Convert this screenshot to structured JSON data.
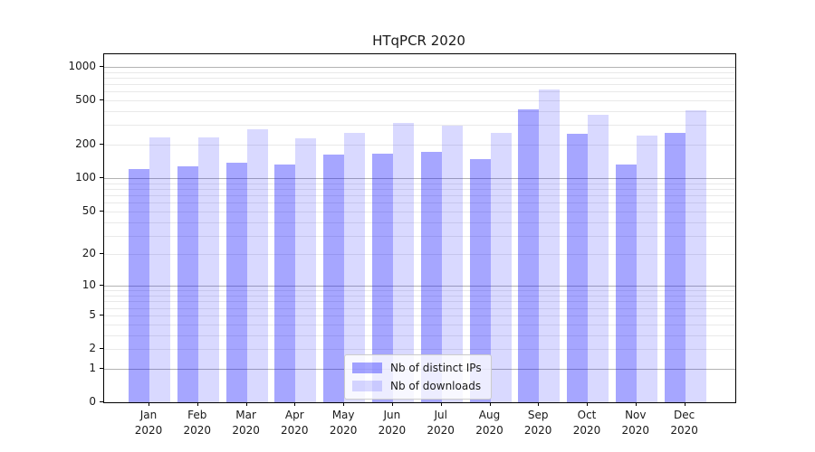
{
  "chart_data": {
    "type": "bar",
    "title": "HTqPCR 2020",
    "categories": [
      "Jan 2020",
      "Feb 2020",
      "Mar 2020",
      "Apr 2020",
      "May 2020",
      "Jun 2020",
      "Jul 2020",
      "Aug 2020",
      "Sep 2020",
      "Oct 2020",
      "Nov 2020",
      "Dec 2020"
    ],
    "series": [
      {
        "name": "Nb of distinct IPs",
        "values": [
          122,
          128,
          139,
          133,
          164,
          165,
          174,
          149,
          415,
          253,
          132,
          254
        ]
      },
      {
        "name": "Nb of downloads",
        "values": [
          235,
          235,
          276,
          230,
          257,
          312,
          299,
          258,
          622,
          375,
          244,
          405
        ]
      }
    ],
    "xlabel": "",
    "ylabel": "",
    "yscale": "log1p",
    "ylim": [
      0,
      1300
    ],
    "yticks": [
      0,
      1,
      2,
      5,
      10,
      20,
      50,
      100,
      200,
      500,
      1000
    ],
    "major_gridlines": [
      1,
      10,
      100,
      1000
    ],
    "minor_gridline_decades": [
      1,
      10,
      100
    ],
    "grid": true,
    "legend_position": "lower-center"
  },
  "colors": {
    "bar_distinct_ips": "rgba(0,0,255,0.35)",
    "bar_downloads": "rgba(0,0,255,0.15)",
    "bar_distinct_ips_hex": "#a6a6ff",
    "bar_downloads_hex": "#d9d9ff",
    "gridline_major": "#b3b3b3",
    "gridline_minor": "#e9e9e9",
    "axis_spine": "#000000",
    "text": "#1a1a1a",
    "legend_bg": "rgba(255,255,255,0.8)",
    "legend_border": "#cccccc"
  }
}
